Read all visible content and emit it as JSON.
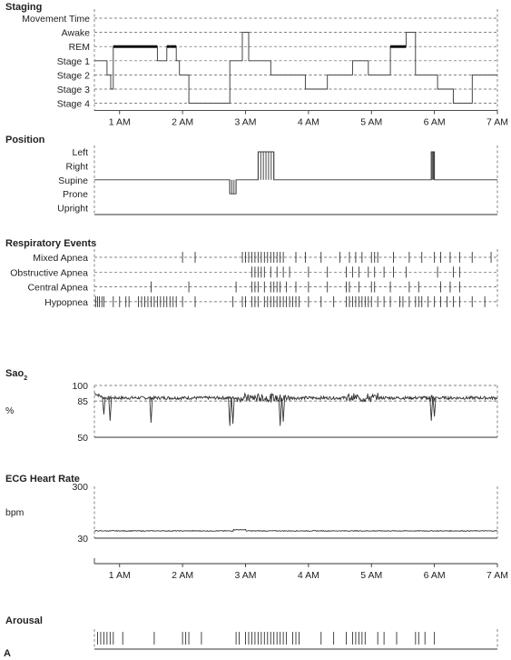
{
  "figure_label": "A",
  "chart_data": [
    {
      "type": "line",
      "title": "Staging",
      "categories": [
        "Movement Time",
        "Awake",
        "REM",
        "Stage 1",
        "Stage 2",
        "Stage 3",
        "Stage 4"
      ],
      "x_ticks": [
        "1 AM",
        "2 AM",
        "3 AM",
        "4 AM",
        "5 AM",
        "6 AM",
        "7 AM"
      ],
      "xlim_hours": [
        0.6,
        7.0
      ],
      "grid": true,
      "segments": [
        {
          "t0": 0.6,
          "t1": 0.8,
          "stage": "Stage 1"
        },
        {
          "t0": 0.8,
          "t1": 0.86,
          "stage": "Stage 2"
        },
        {
          "t0": 0.86,
          "t1": 0.9,
          "stage": "Stage 3"
        },
        {
          "t0": 0.9,
          "t1": 1.35,
          "stage": "REM"
        },
        {
          "t0": 1.35,
          "t1": 1.6,
          "stage": "REM"
        },
        {
          "t0": 1.6,
          "t1": 1.75,
          "stage": "Stage 1"
        },
        {
          "t0": 1.75,
          "t1": 1.8,
          "stage": "REM"
        },
        {
          "t0": 1.8,
          "t1": 1.9,
          "stage": "REM"
        },
        {
          "t0": 1.9,
          "t1": 1.95,
          "stage": "Stage 1"
        },
        {
          "t0": 1.95,
          "t1": 2.1,
          "stage": "Stage 2"
        },
        {
          "t0": 2.1,
          "t1": 2.75,
          "stage": "Stage 4"
        },
        {
          "t0": 2.75,
          "t1": 2.95,
          "stage": "Stage 1"
        },
        {
          "t0": 2.95,
          "t1": 3.05,
          "stage": "Awake"
        },
        {
          "t0": 3.05,
          "t1": 3.4,
          "stage": "Stage 1"
        },
        {
          "t0": 3.4,
          "t1": 3.7,
          "stage": "Stage 2"
        },
        {
          "t0": 3.7,
          "t1": 3.95,
          "stage": "Stage 2"
        },
        {
          "t0": 3.95,
          "t1": 4.3,
          "stage": "Stage 3"
        },
        {
          "t0": 4.3,
          "t1": 4.7,
          "stage": "Stage 2"
        },
        {
          "t0": 4.7,
          "t1": 4.95,
          "stage": "Stage 1"
        },
        {
          "t0": 4.95,
          "t1": 5.3,
          "stage": "Stage 2"
        },
        {
          "t0": 5.3,
          "t1": 5.55,
          "stage": "REM"
        },
        {
          "t0": 5.55,
          "t1": 5.7,
          "stage": "Awake"
        },
        {
          "t0": 5.7,
          "t1": 6.05,
          "stage": "Stage 2"
        },
        {
          "t0": 6.05,
          "t1": 6.3,
          "stage": "Stage 3"
        },
        {
          "t0": 6.3,
          "t1": 6.6,
          "stage": "Stage 4"
        },
        {
          "t0": 6.6,
          "t1": 7.0,
          "stage": "Stage 2"
        }
      ]
    },
    {
      "type": "line",
      "title": "Position",
      "categories": [
        "Left",
        "Right",
        "Supine",
        "Prone",
        "Upright"
      ],
      "segments": [
        {
          "t0": 0.6,
          "t1": 2.75,
          "position": "Supine"
        },
        {
          "t0": 2.75,
          "t1": 2.85,
          "position": "Prone"
        },
        {
          "t0": 2.85,
          "t1": 3.2,
          "position": "Supine"
        },
        {
          "t0": 3.2,
          "t1": 3.45,
          "position": "Left"
        },
        {
          "t0": 3.45,
          "t1": 5.95,
          "position": "Supine"
        },
        {
          "t0": 5.95,
          "t1": 6.0,
          "position": "Left"
        },
        {
          "t0": 6.0,
          "t1": 7.0,
          "position": "Supine"
        }
      ]
    },
    {
      "type": "scatter",
      "title": "Respiratory Events",
      "categories": [
        "Mixed Apnea",
        "Obstructive Apnea",
        "Central Apnea",
        "Hypopnea"
      ],
      "series": [
        {
          "name": "Mixed Apnea",
          "x_hours": [
            2.0,
            2.2,
            2.95,
            3.0,
            3.05,
            3.1,
            3.15,
            3.2,
            3.25,
            3.3,
            3.35,
            3.4,
            3.45,
            3.5,
            3.55,
            3.6,
            3.8,
            3.95,
            4.2,
            4.5,
            4.65,
            4.75,
            4.85,
            5.0,
            5.05,
            5.1,
            5.35,
            5.6,
            5.8,
            6.0,
            6.1,
            6.25,
            6.4,
            6.6,
            6.9
          ]
        },
        {
          "name": "Obstructive Apnea",
          "x_hours": [
            3.1,
            3.15,
            3.2,
            3.25,
            3.3,
            3.4,
            3.5,
            3.6,
            3.7,
            4.0,
            4.3,
            4.6,
            4.7,
            4.8,
            4.95,
            5.05,
            5.2,
            5.35,
            5.55,
            6.05,
            6.3,
            6.4
          ]
        },
        {
          "name": "Central Apnea",
          "x_hours": [
            1.5,
            2.1,
            2.85,
            3.1,
            3.15,
            3.2,
            3.3,
            3.4,
            3.45,
            3.5,
            3.55,
            3.65,
            3.8,
            4.0,
            4.3,
            4.6,
            4.65,
            4.8,
            5.0,
            5.05,
            5.3,
            5.6,
            5.75,
            6.1,
            6.25,
            6.4
          ]
        },
        {
          "name": "Hypopnea",
          "x_hours": [
            0.62,
            0.65,
            0.68,
            0.72,
            0.75,
            0.9,
            1.0,
            1.1,
            1.15,
            1.3,
            1.35,
            1.4,
            1.45,
            1.5,
            1.55,
            1.6,
            1.65,
            1.7,
            1.75,
            1.8,
            1.85,
            1.9,
            2.0,
            2.2,
            2.8,
            2.95,
            3.0,
            3.1,
            3.15,
            3.2,
            3.3,
            3.35,
            3.4,
            3.45,
            3.5,
            3.55,
            3.6,
            3.65,
            3.7,
            3.75,
            3.8,
            3.85,
            4.0,
            4.2,
            4.4,
            4.6,
            4.65,
            4.7,
            4.75,
            4.8,
            4.85,
            4.9,
            4.95,
            5.0,
            5.1,
            5.2,
            5.3,
            5.45,
            5.5,
            5.6,
            5.7,
            5.75,
            5.8,
            5.9,
            6.0,
            6.1,
            6.2,
            6.3,
            6.4,
            6.6,
            6.8
          ]
        }
      ]
    },
    {
      "type": "line",
      "title": "Sao2",
      "ylabel": "%",
      "yticks": [
        100,
        85,
        50
      ],
      "ylim": [
        50,
        100
      ],
      "reference_line": 85,
      "baseline": 88,
      "dips": [
        {
          "t": 0.75,
          "min": 72
        },
        {
          "t": 0.85,
          "min": 66
        },
        {
          "t": 1.5,
          "min": 64
        },
        {
          "t": 2.75,
          "min": 61
        },
        {
          "t": 2.8,
          "min": 63
        },
        {
          "t": 3.55,
          "min": 61
        },
        {
          "t": 3.6,
          "min": 65
        },
        {
          "t": 5.95,
          "min": 66
        },
        {
          "t": 6.0,
          "min": 70
        }
      ]
    },
    {
      "type": "line",
      "title": "ECG Heart Rate",
      "ylabel": "bpm",
      "yticks": [
        300,
        30
      ],
      "ylim": [
        30,
        300
      ],
      "baseline": 68
    },
    {
      "type": "scatter",
      "title": "Arousal",
      "x_hours": [
        0.65,
        0.7,
        0.75,
        0.8,
        0.85,
        0.9,
        1.05,
        1.55,
        2.0,
        2.05,
        2.1,
        2.3,
        2.85,
        2.9,
        3.0,
        3.05,
        3.1,
        3.15,
        3.2,
        3.25,
        3.3,
        3.35,
        3.4,
        3.45,
        3.5,
        3.55,
        3.6,
        3.65,
        3.75,
        3.8,
        3.85,
        4.2,
        4.4,
        4.6,
        4.7,
        4.75,
        4.8,
        4.85,
        4.9,
        5.1,
        5.2,
        5.4,
        5.7,
        5.75,
        5.85,
        6.0
      ]
    },
    {
      "type": "axis",
      "x_ticks": [
        "1 AM",
        "2 AM",
        "3 AM",
        "4 AM",
        "5 AM",
        "6 AM",
        "7 AM"
      ]
    }
  ]
}
